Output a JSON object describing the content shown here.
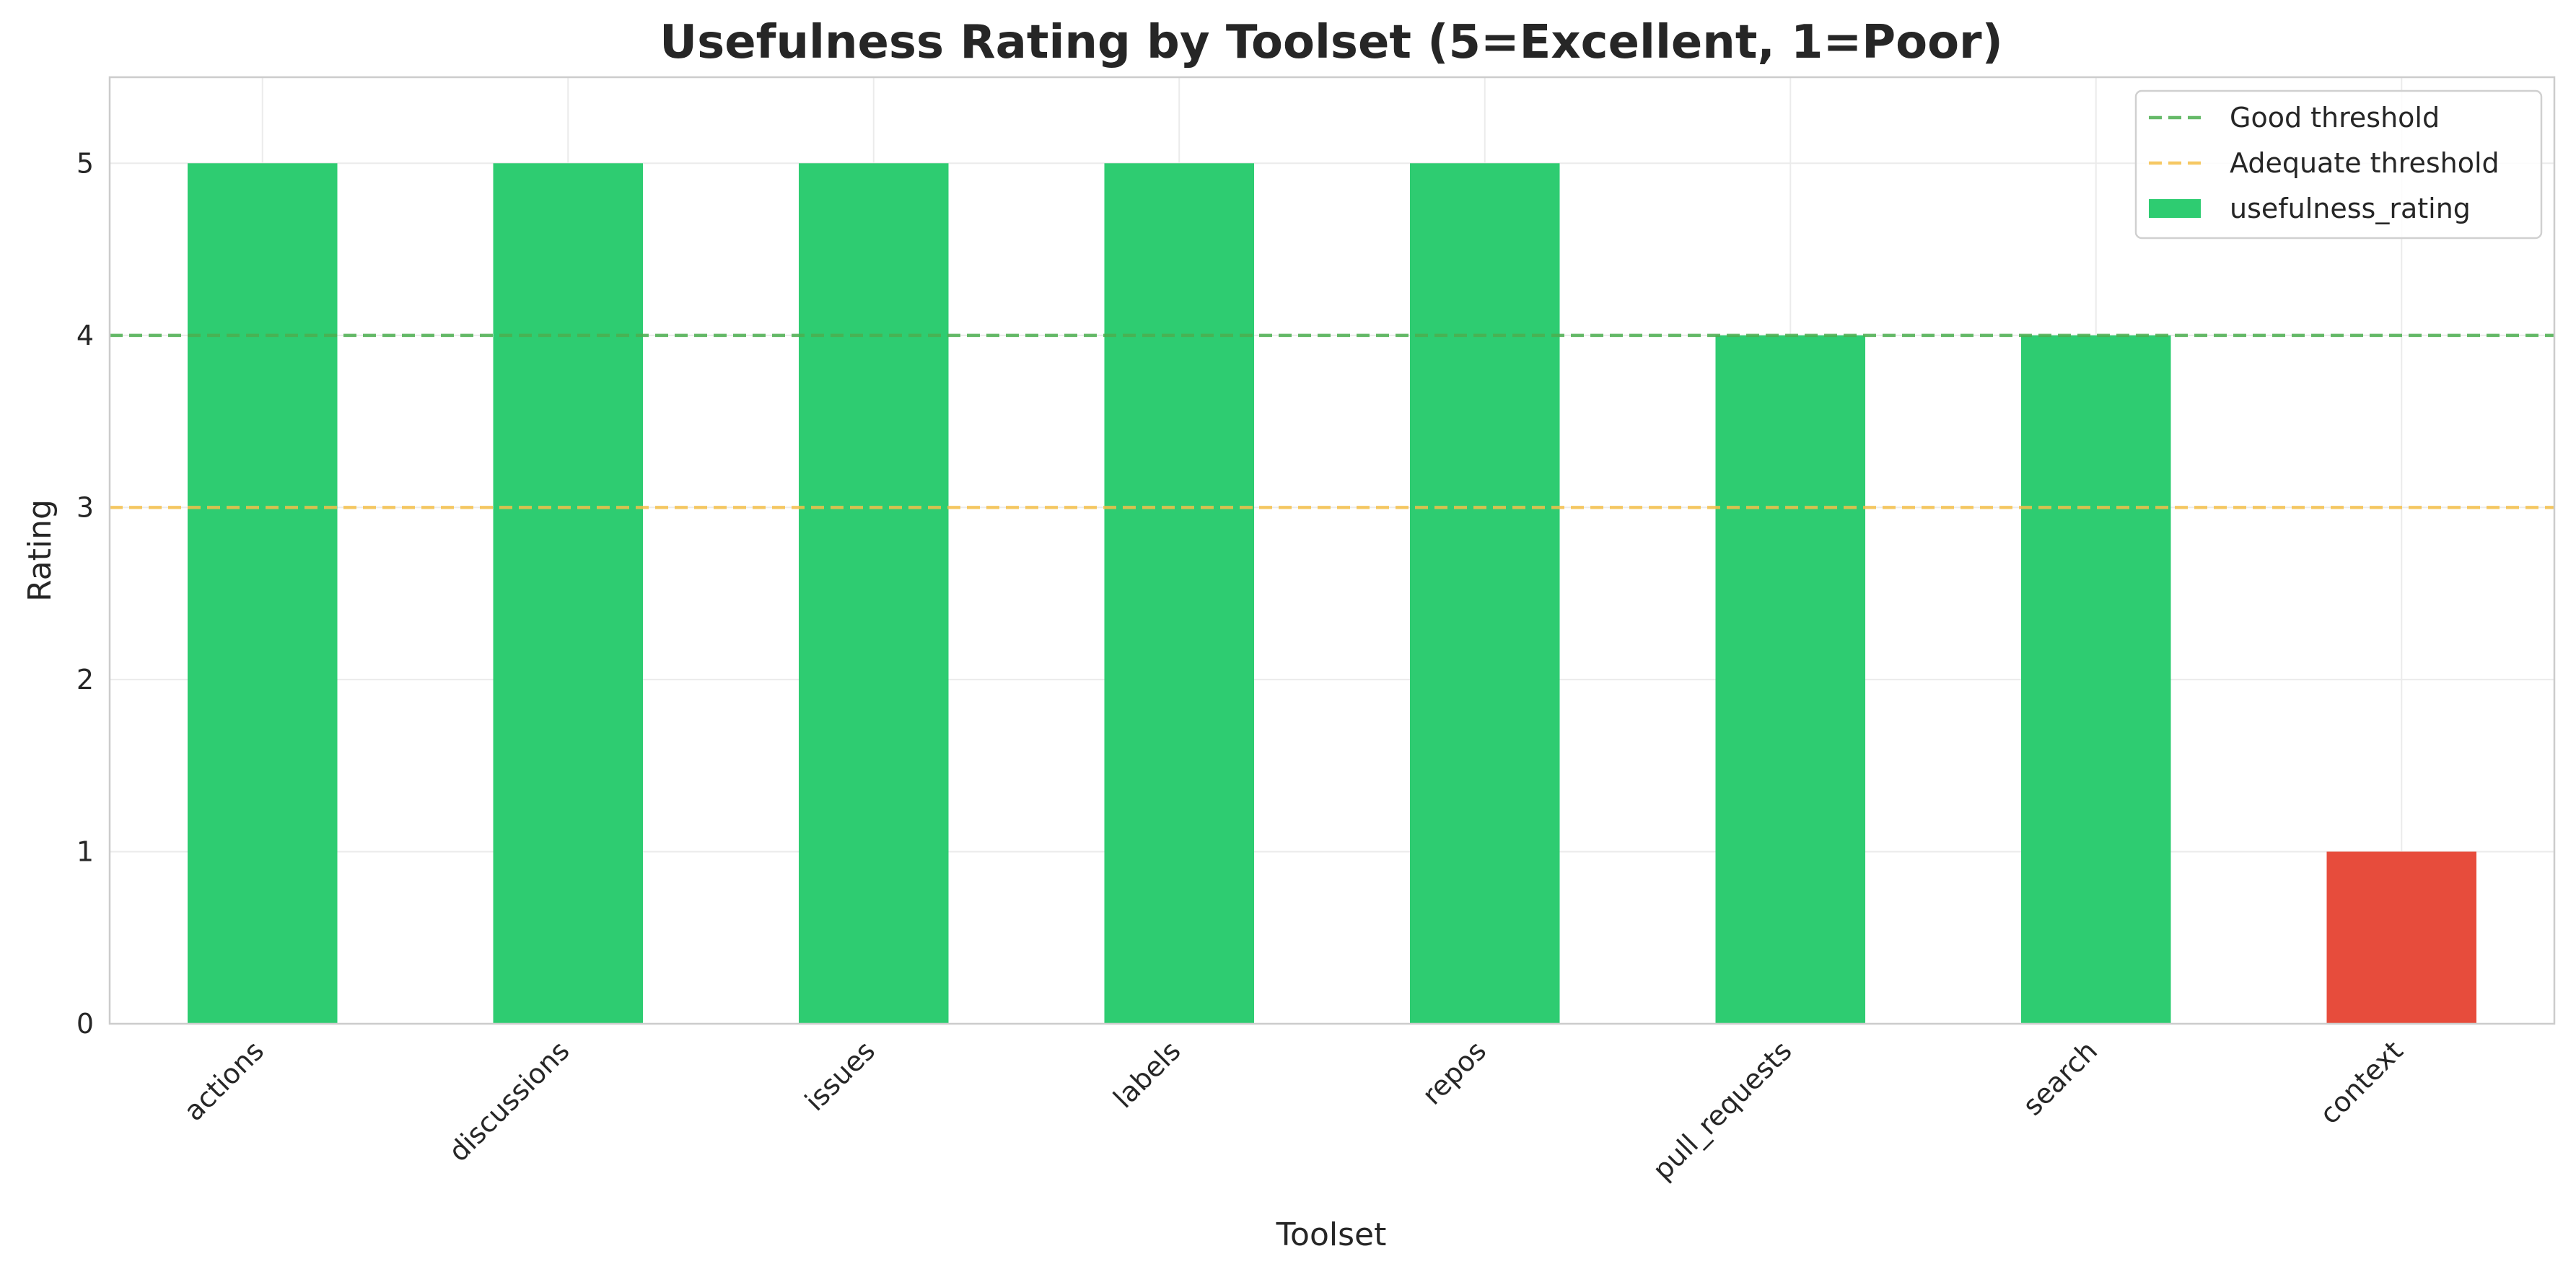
{
  "chart_data": {
    "type": "bar",
    "title": "Usefulness Rating by Toolset (5=Excellent, 1=Poor)",
    "xlabel": "Toolset",
    "ylabel": "Rating",
    "categories": [
      "actions",
      "discussions",
      "issues",
      "labels",
      "repos",
      "pull_requests",
      "search",
      "context"
    ],
    "series": [
      {
        "name": "usefulness_rating",
        "values": [
          5,
          5,
          5,
          5,
          5,
          4,
          4,
          1
        ],
        "colors": [
          "#2ecc71",
          "#2ecc71",
          "#2ecc71",
          "#2ecc71",
          "#2ecc71",
          "#2ecc71",
          "#2ecc71",
          "#e74c3c"
        ]
      }
    ],
    "ylim": [
      0,
      5.5
    ],
    "yticks": [
      0,
      1,
      2,
      3,
      4,
      5
    ],
    "reference_lines": [
      {
        "name": "Good threshold",
        "y": 4,
        "color": "#4caf50",
        "style": "dashed"
      },
      {
        "name": "Adequate threshold",
        "y": 3,
        "color": "#f5c04a",
        "style": "dashed"
      }
    ],
    "grid": true,
    "legend_position": "top-right"
  }
}
